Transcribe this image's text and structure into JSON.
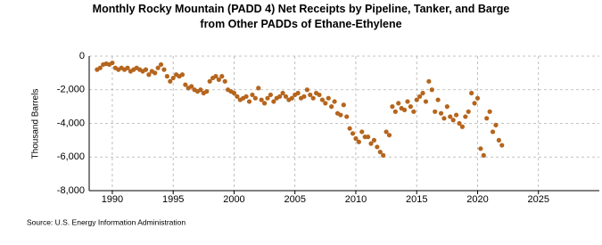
{
  "chart_data": {
    "type": "scatter",
    "title": "Monthly Rocky Mountain (PADD 4) Net Receipts by Pipeline, Tanker, and Barge from Other PADDs of Ethane-Ethylene",
    "y_label": "Thousand Barrels",
    "source": "Source: U.S. Energy Information Administration",
    "color": "#b5651d",
    "grid": true,
    "xlim": [
      1988.1,
      2030
    ],
    "xticks": [
      1990,
      1995,
      2000,
      2005,
      2010,
      2015,
      2020,
      2025
    ],
    "ylim": [
      -8000,
      0
    ],
    "yticks": [
      {
        "value": -8000,
        "label": "-8,000"
      },
      {
        "value": -6000,
        "label": "-6,000"
      },
      {
        "value": -4000,
        "label": "-4,000"
      },
      {
        "value": -2000,
        "label": "-2,000"
      },
      0
    ],
    "x": [
      1988.75,
      1989,
      1989.25,
      1989.5,
      1989.75,
      1990,
      1990.25,
      1990.5,
      1990.75,
      1991,
      1991.25,
      1991.5,
      1991.75,
      1992,
      1992.25,
      1992.5,
      1992.75,
      1993,
      1993.25,
      1993.5,
      1993.75,
      1994,
      1994.25,
      1994.5,
      1994.75,
      1995,
      1995.25,
      1995.5,
      1995.75,
      1996,
      1996.25,
      1996.5,
      1996.75,
      1997,
      1997.25,
      1997.5,
      1997.75,
      1998,
      1998.25,
      1998.5,
      1998.75,
      1999,
      1999.25,
      1999.5,
      1999.75,
      2000,
      2000.25,
      2000.5,
      2000.75,
      2001,
      2001.25,
      2001.5,
      2001.75,
      2002,
      2002.25,
      2002.5,
      2002.75,
      2003,
      2003.25,
      2003.5,
      2003.75,
      2004,
      2004.25,
      2004.5,
      2004.75,
      2005,
      2005.25,
      2005.5,
      2005.75,
      2006,
      2006.25,
      2006.5,
      2006.75,
      2007,
      2007.25,
      2007.5,
      2007.75,
      2008,
      2008.25,
      2008.5,
      2008.75,
      2009,
      2009.25,
      2009.5,
      2009.75,
      2010,
      2010.25,
      2010.5,
      2010.75,
      2011,
      2011.25,
      2011.5,
      2011.75,
      2012,
      2012.25,
      2012.5,
      2012.75,
      2013,
      2013.25,
      2013.5,
      2013.75,
      2014,
      2014.25,
      2014.5,
      2014.75,
      2015,
      2015.25,
      2015.5,
      2015.75,
      2016,
      2016.25,
      2016.5,
      2016.75,
      2017,
      2017.25,
      2017.5,
      2017.75,
      2018,
      2018.25,
      2018.5,
      2018.75,
      2019,
      2019.25,
      2019.5,
      2019.75,
      2020,
      2020.25,
      2020.5,
      2020.75,
      2021,
      2021.25,
      2021.5,
      2021.75,
      2022
    ],
    "values": [
      -800,
      -700,
      -500,
      -450,
      -500,
      -400,
      -700,
      -800,
      -700,
      -800,
      -700,
      -900,
      -800,
      -700,
      -800,
      -900,
      -800,
      -1100,
      -900,
      -1000,
      -700,
      -500,
      -800,
      -1200,
      -1500,
      -1300,
      -1100,
      -1200,
      -1100,
      -1700,
      -1900,
      -1800,
      -2000,
      -2100,
      -2000,
      -2200,
      -2100,
      -1500,
      -1300,
      -1200,
      -1400,
      -1200,
      -1500,
      -2000,
      -2100,
      -2200,
      -2400,
      -2600,
      -2500,
      -2400,
      -2700,
      -2300,
      -2500,
      -1900,
      -2600,
      -2800,
      -2500,
      -2300,
      -2700,
      -2500,
      -2400,
      -2200,
      -2400,
      -2600,
      -2500,
      -2300,
      -2200,
      -2500,
      -2400,
      -2000,
      -2300,
      -2500,
      -2200,
      -2300,
      -2600,
      -2800,
      -2500,
      -3000,
      -2700,
      -3400,
      -3500,
      -2900,
      -3600,
      -4300,
      -4600,
      -4900,
      -5100,
      -4500,
      -4800,
      -4800,
      -5200,
      -5000,
      -5400,
      -5700,
      -5900,
      -4500,
      -4700,
      -3000,
      -3300,
      -2800,
      -3100,
      -3200,
      -2700,
      -3000,
      -3300,
      -2600,
      -2400,
      -2200,
      -2700,
      -1500,
      -2000,
      -3300,
      -2600,
      -3400,
      -3700,
      -3000,
      -3600,
      -3800,
      -3500,
      -4000,
      -4200,
      -3600,
      -3300,
      -2200,
      -2800,
      -2500,
      -5500,
      -5900,
      -3700,
      -3300,
      -4500,
      -4100,
      -5000,
      -5300
    ]
  }
}
